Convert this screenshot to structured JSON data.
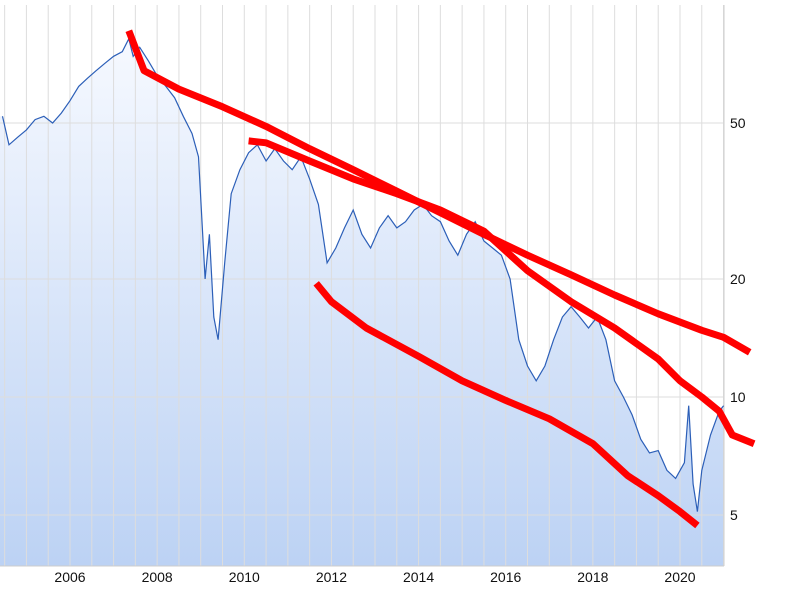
{
  "chart_data": {
    "type": "line",
    "title": "",
    "xlabel": "",
    "ylabel": "",
    "x_scale": "linear",
    "y_scale": "log",
    "xlim": [
      2004.4,
      2021.0
    ],
    "ylim": [
      3.5,
      88
    ],
    "grid": true,
    "x_ticks": [
      2006,
      2008,
      2010,
      2012,
      2014,
      2016,
      2018,
      2020
    ],
    "x_tick_labels": [
      "2006",
      "2008",
      "2010",
      "2012",
      "2014",
      "2016",
      "2018",
      "2020"
    ],
    "y_ticks": [
      5,
      10,
      20,
      50
    ],
    "y_tick_labels": [
      "5",
      "10",
      "20",
      "50"
    ],
    "y_axis_side": "right",
    "colors": {
      "series": "#2c5fb8",
      "fill_top": "#f6f9ff",
      "fill_bottom": "#bcd2f4",
      "grid": "#dddddd",
      "trendline": "#ff0000"
    },
    "series": [
      {
        "points": [
          [
            2004.45,
            52
          ],
          [
            2004.6,
            44
          ],
          [
            2004.8,
            46
          ],
          [
            2005.0,
            48
          ],
          [
            2005.2,
            51
          ],
          [
            2005.4,
            52
          ],
          [
            2005.6,
            50
          ],
          [
            2005.8,
            53
          ],
          [
            2006.0,
            57
          ],
          [
            2006.2,
            62
          ],
          [
            2006.4,
            65
          ],
          [
            2006.6,
            68
          ],
          [
            2006.8,
            71
          ],
          [
            2007.0,
            74
          ],
          [
            2007.2,
            76
          ],
          [
            2007.35,
            82
          ],
          [
            2007.45,
            74
          ],
          [
            2007.6,
            78
          ],
          [
            2007.8,
            72
          ],
          [
            2008.0,
            66
          ],
          [
            2008.2,
            62
          ],
          [
            2008.4,
            58
          ],
          [
            2008.6,
            52
          ],
          [
            2008.8,
            47
          ],
          [
            2008.95,
            41
          ],
          [
            2009.1,
            20
          ],
          [
            2009.2,
            26
          ],
          [
            2009.3,
            16
          ],
          [
            2009.4,
            14
          ],
          [
            2009.55,
            22
          ],
          [
            2009.7,
            33
          ],
          [
            2009.9,
            38
          ],
          [
            2010.1,
            42
          ],
          [
            2010.3,
            44
          ],
          [
            2010.5,
            40
          ],
          [
            2010.7,
            43
          ],
          [
            2010.9,
            40
          ],
          [
            2011.1,
            38
          ],
          [
            2011.3,
            41
          ],
          [
            2011.5,
            36
          ],
          [
            2011.7,
            31
          ],
          [
            2011.9,
            22
          ],
          [
            2012.1,
            24
          ],
          [
            2012.3,
            27
          ],
          [
            2012.5,
            30
          ],
          [
            2012.7,
            26
          ],
          [
            2012.9,
            24
          ],
          [
            2013.1,
            27
          ],
          [
            2013.3,
            29
          ],
          [
            2013.5,
            27
          ],
          [
            2013.7,
            28
          ],
          [
            2013.9,
            30
          ],
          [
            2014.1,
            31
          ],
          [
            2014.3,
            29
          ],
          [
            2014.5,
            28
          ],
          [
            2014.7,
            25
          ],
          [
            2014.9,
            23
          ],
          [
            2015.1,
            26
          ],
          [
            2015.3,
            28
          ],
          [
            2015.5,
            25
          ],
          [
            2015.7,
            24
          ],
          [
            2015.9,
            23
          ],
          [
            2016.1,
            20
          ],
          [
            2016.3,
            14
          ],
          [
            2016.5,
            12
          ],
          [
            2016.7,
            11
          ],
          [
            2016.9,
            12
          ],
          [
            2017.1,
            14
          ],
          [
            2017.3,
            16
          ],
          [
            2017.5,
            17
          ],
          [
            2017.7,
            16
          ],
          [
            2017.9,
            15
          ],
          [
            2018.1,
            16
          ],
          [
            2018.3,
            14
          ],
          [
            2018.5,
            11
          ],
          [
            2018.7,
            10
          ],
          [
            2018.9,
            9
          ],
          [
            2019.1,
            7.8
          ],
          [
            2019.3,
            7.2
          ],
          [
            2019.5,
            7.3
          ],
          [
            2019.7,
            6.5
          ],
          [
            2019.9,
            6.2
          ],
          [
            2020.1,
            6.8
          ],
          [
            2020.2,
            9.5
          ],
          [
            2020.3,
            6.0
          ],
          [
            2020.4,
            5.1
          ],
          [
            2020.5,
            6.5
          ],
          [
            2020.7,
            8.0
          ],
          [
            2020.9,
            9.2
          ],
          [
            2021.0,
            9.5
          ]
        ]
      }
    ],
    "trendlines": [
      {
        "points": [
          [
            2007.35,
            86
          ],
          [
            2007.7,
            68
          ],
          [
            2008.5,
            61
          ],
          [
            2009.5,
            55
          ],
          [
            2010.5,
            49
          ],
          [
            2011.5,
            43
          ],
          [
            2012.5,
            38
          ],
          [
            2013.5,
            33.5
          ],
          [
            2014.5,
            29.5
          ],
          [
            2015.5,
            26
          ],
          [
            2016.5,
            23
          ],
          [
            2017.5,
            20.5
          ],
          [
            2018.5,
            18.2
          ],
          [
            2019.5,
            16.3
          ],
          [
            2020.5,
            14.8
          ],
          [
            2021.0,
            14.2
          ],
          [
            2021.6,
            13.0
          ]
        ]
      },
      {
        "points": [
          [
            2010.1,
            45
          ],
          [
            2010.5,
            44.5
          ],
          [
            2011.5,
            40
          ],
          [
            2012.5,
            36
          ],
          [
            2013.5,
            33
          ],
          [
            2014.5,
            30
          ],
          [
            2015.5,
            26.5
          ],
          [
            2016.5,
            21
          ],
          [
            2017.5,
            17.5
          ],
          [
            2018.5,
            15
          ],
          [
            2019.5,
            12.5
          ],
          [
            2020.0,
            11
          ],
          [
            2020.5,
            10
          ],
          [
            2020.9,
            9.2
          ],
          [
            2021.2,
            8
          ],
          [
            2021.7,
            7.6
          ]
        ]
      },
      {
        "points": [
          [
            2011.65,
            19.5
          ],
          [
            2012.0,
            17.5
          ],
          [
            2012.8,
            15
          ],
          [
            2014.0,
            12.7
          ],
          [
            2015.0,
            11
          ],
          [
            2016.0,
            9.8
          ],
          [
            2017.0,
            8.8
          ],
          [
            2018.0,
            7.6
          ],
          [
            2018.8,
            6.3
          ],
          [
            2019.5,
            5.6
          ],
          [
            2020.0,
            5.1
          ],
          [
            2020.4,
            4.7
          ]
        ]
      }
    ]
  }
}
